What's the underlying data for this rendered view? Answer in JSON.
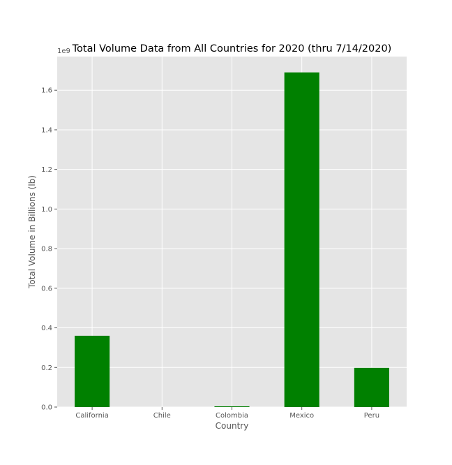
{
  "chart_data": {
    "type": "bar",
    "title": "Total Volume Data from All Countries for 2020 (thru 7/14/2020)",
    "xlabel": "Country",
    "ylabel": "Total Volume in Billions (lb)",
    "y_offset_label": "1e9",
    "categories": [
      "California",
      "Chile",
      "Colombia",
      "Mexico",
      "Peru"
    ],
    "values": [
      0.36,
      0.0,
      0.0035,
      1.69,
      0.198
    ],
    "ylim": [
      0,
      1.77
    ],
    "yticks": [
      0.0,
      0.2,
      0.4,
      0.6,
      0.8,
      1.0,
      1.2,
      1.4,
      1.6
    ],
    "ytick_labels": [
      "0.0",
      "0.2",
      "0.4",
      "0.6",
      "0.8",
      "1.0",
      "1.2",
      "1.4",
      "1.6"
    ],
    "bar_color": "#008000",
    "background_color": "#e5e5e5",
    "grid_color": "#ffffff",
    "grid": true,
    "legend": "none"
  }
}
